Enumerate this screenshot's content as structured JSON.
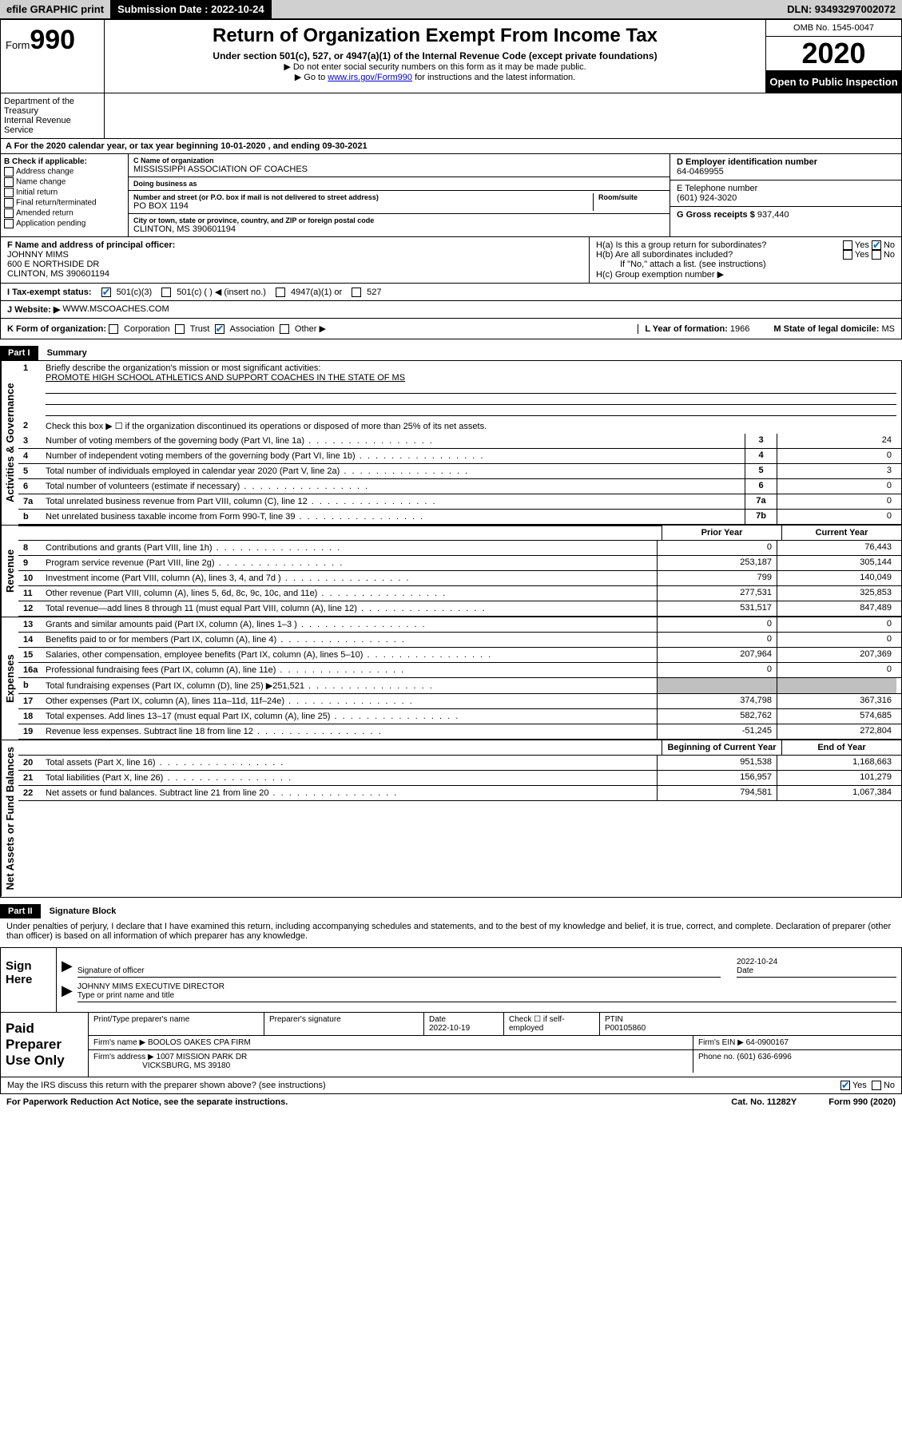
{
  "topbar": {
    "efile": "efile GRAPHIC print",
    "submission_label": "Submission Date : 2022-10-24",
    "dln": "DLN: 93493297002072"
  },
  "header": {
    "form_label": "Form",
    "form_number": "990",
    "title": "Return of Organization Exempt From Income Tax",
    "subtitle": "Under section 501(c), 527, or 4947(a)(1) of the Internal Revenue Code (except private foundations)",
    "note1": "▶ Do not enter social security numbers on this form as it may be made public.",
    "note2_pre": "▶ Go to ",
    "note2_link": "www.irs.gov/Form990",
    "note2_post": " for instructions and the latest information.",
    "dept": "Department of the Treasury\nInternal Revenue Service",
    "omb": "OMB No. 1545-0047",
    "year": "2020",
    "inspection": "Open to Public Inspection"
  },
  "line_a": "For the 2020 calendar year, or tax year beginning 10-01-2020   , and ending 09-30-2021",
  "box_b": {
    "label": "B Check if applicable:",
    "opts": [
      "Address change",
      "Name change",
      "Initial return",
      "Final return/terminated",
      "Amended return",
      "Application pending"
    ]
  },
  "box_c": {
    "name_label": "C Name of organization",
    "name": "MISSISSIPPI ASSOCIATION OF COACHES",
    "dba_label": "Doing business as",
    "dba": "",
    "street_label": "Number and street (or P.O. box if mail is not delivered to street address)",
    "room_label": "Room/suite",
    "street": "PO BOX 1194",
    "city_label": "City or town, state or province, country, and ZIP or foreign postal code",
    "city": "CLINTON, MS  390601194"
  },
  "box_d": {
    "label": "D Employer identification number",
    "value": "64-0469955"
  },
  "box_e": {
    "label": "E Telephone number",
    "value": "(601) 924-3020"
  },
  "box_g": {
    "label": "G Gross receipts $",
    "value": "937,440"
  },
  "box_f": {
    "label": "F Name and address of principal officer:",
    "name": "JOHNNY MIMS",
    "addr1": "600 E NORTHSIDE DR",
    "addr2": "CLINTON, MS  390601194"
  },
  "box_h": {
    "ha": "H(a)  Is this a group return for subordinates?",
    "hb": "H(b)  Are all subordinates included?",
    "hb_note": "If \"No,\" attach a list. (see instructions)",
    "hc": "H(c)  Group exemption number ▶"
  },
  "box_i": {
    "label": "I  Tax-exempt status:",
    "opts": [
      "501(c)(3)",
      "501(c) (  ) ◀ (insert no.)",
      "4947(a)(1) or",
      "527"
    ]
  },
  "box_j": {
    "label": "J  Website: ▶",
    "value": "WWW.MSCOACHES.COM"
  },
  "box_k": {
    "label": "K Form of organization:",
    "opts": [
      "Corporation",
      "Trust",
      "Association",
      "Other ▶"
    ],
    "checked_idx": 2,
    "l_label": "L Year of formation:",
    "l_val": "1966",
    "m_label": "M State of legal domicile:",
    "m_val": "MS"
  },
  "part_i": {
    "header": "Part I",
    "title": "Summary",
    "side_gov": "Activities & Governance",
    "side_rev": "Revenue",
    "side_exp": "Expenses",
    "side_net": "Net Assets or Fund Balances",
    "q1": "Briefly describe the organization's mission or most significant activities:",
    "q1_ans": "PROMOTE HIGH SCHOOL ATHLETICS AND SUPPORT COACHES IN THE STATE OF MS",
    "q2": "Check this box ▶ ☐  if the organization discontinued its operations or disposed of more than 25% of its net assets.",
    "prior_year": "Prior Year",
    "current_year": "Current Year",
    "begin_year": "Beginning of Current Year",
    "end_year": "End of Year",
    "rows_gov": [
      {
        "n": "3",
        "t": "Number of voting members of the governing body (Part VI, line 1a)",
        "box": "3",
        "v": "24"
      },
      {
        "n": "4",
        "t": "Number of independent voting members of the governing body (Part VI, line 1b)",
        "box": "4",
        "v": "0"
      },
      {
        "n": "5",
        "t": "Total number of individuals employed in calendar year 2020 (Part V, line 2a)",
        "box": "5",
        "v": "3"
      },
      {
        "n": "6",
        "t": "Total number of volunteers (estimate if necessary)",
        "box": "6",
        "v": "0"
      },
      {
        "n": "7a",
        "t": "Total unrelated business revenue from Part VIII, column (C), line 12",
        "box": "7a",
        "v": "0"
      },
      {
        "n": "b",
        "t": "Net unrelated business taxable income from Form 990-T, line 39",
        "box": "7b",
        "v": "0"
      }
    ],
    "rows_rev": [
      {
        "n": "8",
        "t": "Contributions and grants (Part VIII, line 1h)",
        "py": "0",
        "cy": "76,443"
      },
      {
        "n": "9",
        "t": "Program service revenue (Part VIII, line 2g)",
        "py": "253,187",
        "cy": "305,144"
      },
      {
        "n": "10",
        "t": "Investment income (Part VIII, column (A), lines 3, 4, and 7d )",
        "py": "799",
        "cy": "140,049"
      },
      {
        "n": "11",
        "t": "Other revenue (Part VIII, column (A), lines 5, 6d, 8c, 9c, 10c, and 11e)",
        "py": "277,531",
        "cy": "325,853"
      },
      {
        "n": "12",
        "t": "Total revenue—add lines 8 through 11 (must equal Part VIII, column (A), line 12)",
        "py": "531,517",
        "cy": "847,489"
      }
    ],
    "rows_exp": [
      {
        "n": "13",
        "t": "Grants and similar amounts paid (Part IX, column (A), lines 1–3 )",
        "py": "0",
        "cy": "0"
      },
      {
        "n": "14",
        "t": "Benefits paid to or for members (Part IX, column (A), line 4)",
        "py": "0",
        "cy": "0"
      },
      {
        "n": "15",
        "t": "Salaries, other compensation, employee benefits (Part IX, column (A), lines 5–10)",
        "py": "207,964",
        "cy": "207,369"
      },
      {
        "n": "16a",
        "t": "Professional fundraising fees (Part IX, column (A), line 11e)",
        "py": "0",
        "cy": "0"
      },
      {
        "n": "b",
        "t": "Total fundraising expenses (Part IX, column (D), line 25) ▶251,521",
        "py": "",
        "cy": "",
        "shaded": true
      },
      {
        "n": "17",
        "t": "Other expenses (Part IX, column (A), lines 11a–11d, 11f–24e)",
        "py": "374,798",
        "cy": "367,316"
      },
      {
        "n": "18",
        "t": "Total expenses. Add lines 13–17 (must equal Part IX, column (A), line 25)",
        "py": "582,762",
        "cy": "574,685"
      },
      {
        "n": "19",
        "t": "Revenue less expenses. Subtract line 18 from line 12",
        "py": "-51,245",
        "cy": "272,804"
      }
    ],
    "rows_net": [
      {
        "n": "20",
        "t": "Total assets (Part X, line 16)",
        "py": "951,538",
        "cy": "1,168,663"
      },
      {
        "n": "21",
        "t": "Total liabilities (Part X, line 26)",
        "py": "156,957",
        "cy": "101,279"
      },
      {
        "n": "22",
        "t": "Net assets or fund balances. Subtract line 21 from line 20",
        "py": "794,581",
        "cy": "1,067,384"
      }
    ]
  },
  "part_ii": {
    "header": "Part II",
    "title": "Signature Block",
    "perjury": "Under penalties of perjury, I declare that I have examined this return, including accompanying schedules and statements, and to the best of my knowledge and belief, it is true, correct, and complete. Declaration of preparer (other than officer) is based on all information of which preparer has any knowledge.",
    "sign_here": "Sign Here",
    "sig_officer_label": "Signature of officer",
    "sig_date": "2022-10-24",
    "sig_date_label": "Date",
    "officer_name": "JOHNNY MIMS  EXECUTIVE DIRECTOR",
    "officer_label": "Type or print name and title",
    "paid": "Paid Preparer Use Only",
    "prep_name_label": "Print/Type preparer's name",
    "prep_sig_label": "Preparer's signature",
    "prep_date_label": "Date",
    "prep_date": "2022-10-19",
    "prep_check": "Check ☐ if self-employed",
    "ptin_label": "PTIN",
    "ptin": "P00105860",
    "firm_name_label": "Firm's name   ▶",
    "firm_name": "BOOLOS OAKES CPA FIRM",
    "firm_ein_label": "Firm's EIN ▶",
    "firm_ein": "64-0900167",
    "firm_addr_label": "Firm's address ▶",
    "firm_addr1": "1007 MISSION PARK DR",
    "firm_addr2": "VICKSBURG, MS  39180",
    "firm_phone_label": "Phone no.",
    "firm_phone": "(601) 636-6996",
    "discuss": "May the IRS discuss this return with the preparer shown above? (see instructions)",
    "yes": "Yes",
    "no": "No"
  },
  "footer": {
    "paperwork": "For Paperwork Reduction Act Notice, see the separate instructions.",
    "cat": "Cat. No. 11282Y",
    "form": "Form 990 (2020)"
  }
}
